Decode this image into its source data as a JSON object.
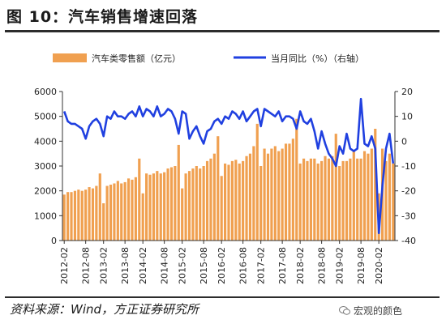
{
  "title": "图 10：汽车销售增速回落",
  "source": "资料来源：Wind，方正证券研究所",
  "watermark": "宏观的颜色",
  "colors": {
    "bar": "#F0A050",
    "line": "#2040E0",
    "axis": "#333333",
    "text": "#222222"
  },
  "chart_data": {
    "type": "bar",
    "title": "图 10：汽车销售增速回落",
    "legend_position": "top",
    "grid": false,
    "x_ticks": [
      "2012-02",
      "2012-08",
      "2013-02",
      "2013-08",
      "2014-02",
      "2014-08",
      "2015-02",
      "2015-08",
      "2016-02",
      "2016-08",
      "2017-02",
      "2017-08",
      "2018-02",
      "2018-08",
      "2019-02",
      "2019-08",
      "2020-02"
    ],
    "y_left": {
      "min": 0,
      "max": 6000,
      "ticks": [
        0,
        1000,
        2000,
        3000,
        4000,
        5000,
        6000
      ]
    },
    "y_right": {
      "min": -40,
      "max": 20,
      "ticks": [
        -40,
        -30,
        -20,
        -10,
        0,
        10,
        20
      ]
    },
    "x": [
      "2012-02",
      "2012-03",
      "2012-04",
      "2012-05",
      "2012-06",
      "2012-07",
      "2012-08",
      "2012-09",
      "2012-10",
      "2012-11",
      "2012-12",
      "2013-02",
      "2013-03",
      "2013-04",
      "2013-05",
      "2013-06",
      "2013-07",
      "2013-08",
      "2013-09",
      "2013-10",
      "2013-11",
      "2013-12",
      "2014-02",
      "2014-03",
      "2014-04",
      "2014-05",
      "2014-06",
      "2014-07",
      "2014-08",
      "2014-09",
      "2014-10",
      "2014-11",
      "2014-12",
      "2015-02",
      "2015-03",
      "2015-04",
      "2015-05",
      "2015-06",
      "2015-07",
      "2015-08",
      "2015-09",
      "2015-10",
      "2015-11",
      "2015-12",
      "2016-02",
      "2016-03",
      "2016-04",
      "2016-05",
      "2016-06",
      "2016-07",
      "2016-08",
      "2016-09",
      "2016-10",
      "2016-11",
      "2016-12",
      "2017-02",
      "2017-03",
      "2017-04",
      "2017-05",
      "2017-06",
      "2017-07",
      "2017-08",
      "2017-09",
      "2017-10",
      "2017-11",
      "2017-12",
      "2018-02",
      "2018-03",
      "2018-04",
      "2018-05",
      "2018-06",
      "2018-07",
      "2018-08",
      "2018-09",
      "2018-10",
      "2018-11",
      "2018-12",
      "2019-02",
      "2019-03",
      "2019-04",
      "2019-05",
      "2019-06",
      "2019-07",
      "2019-08",
      "2019-09",
      "2019-10",
      "2019-11",
      "2019-12",
      "2020-02",
      "2020-03",
      "2020-04",
      "2020-05",
      "2020-06"
    ],
    "series": [
      {
        "name": "汽车类零售额（亿元）",
        "type": "bar",
        "axis": "left",
        "values": [
          1850,
          1950,
          1950,
          2000,
          2050,
          2000,
          2050,
          2150,
          2100,
          2200,
          2700,
          1500,
          2200,
          2250,
          2300,
          2400,
          2300,
          2350,
          2500,
          2450,
          2550,
          3300,
          1900,
          2700,
          2650,
          2700,
          2800,
          2700,
          2750,
          2900,
          2950,
          3000,
          3850,
          2100,
          2700,
          2800,
          2900,
          3000,
          2900,
          3000,
          3200,
          3300,
          3500,
          4200,
          2600,
          3100,
          3050,
          3200,
          3250,
          3100,
          3200,
          3400,
          3500,
          3800,
          4700,
          3000,
          3700,
          3500,
          3700,
          3800,
          3600,
          3700,
          3900,
          3900,
          4100,
          4900,
          3100,
          3300,
          3200,
          3300,
          3300,
          3100,
          3200,
          3400,
          3300,
          3400,
          4300,
          3000,
          3200,
          3200,
          3300,
          3600,
          3300,
          3300,
          3600,
          3500,
          3700,
          4500,
          1900,
          3700,
          3200,
          3500,
          3100
        ]
      },
      {
        "name": "当月同比（%）（右轴）",
        "type": "line",
        "axis": "right",
        "values": [
          12,
          8,
          7,
          7,
          6,
          5,
          1,
          6,
          8,
          9,
          7,
          2,
          10,
          9,
          12,
          10,
          10,
          9,
          11,
          12,
          10,
          14,
          10,
          13,
          12,
          10,
          14,
          10,
          11,
          13,
          12,
          9,
          3,
          12,
          11,
          1,
          4,
          6,
          2,
          -1,
          4,
          5,
          8,
          9,
          7,
          10,
          9,
          12,
          11,
          9,
          12,
          8,
          10,
          12,
          13,
          6,
          13,
          12,
          11,
          10,
          12,
          8,
          10,
          10,
          9,
          5,
          12,
          8,
          7,
          9,
          4,
          -3,
          4,
          -1,
          -5,
          -7,
          -10,
          -2,
          -5,
          3,
          -3,
          -4,
          -3,
          17,
          -1,
          -2,
          2,
          -3,
          -37,
          -18,
          -3,
          3,
          -9
        ]
      }
    ]
  }
}
